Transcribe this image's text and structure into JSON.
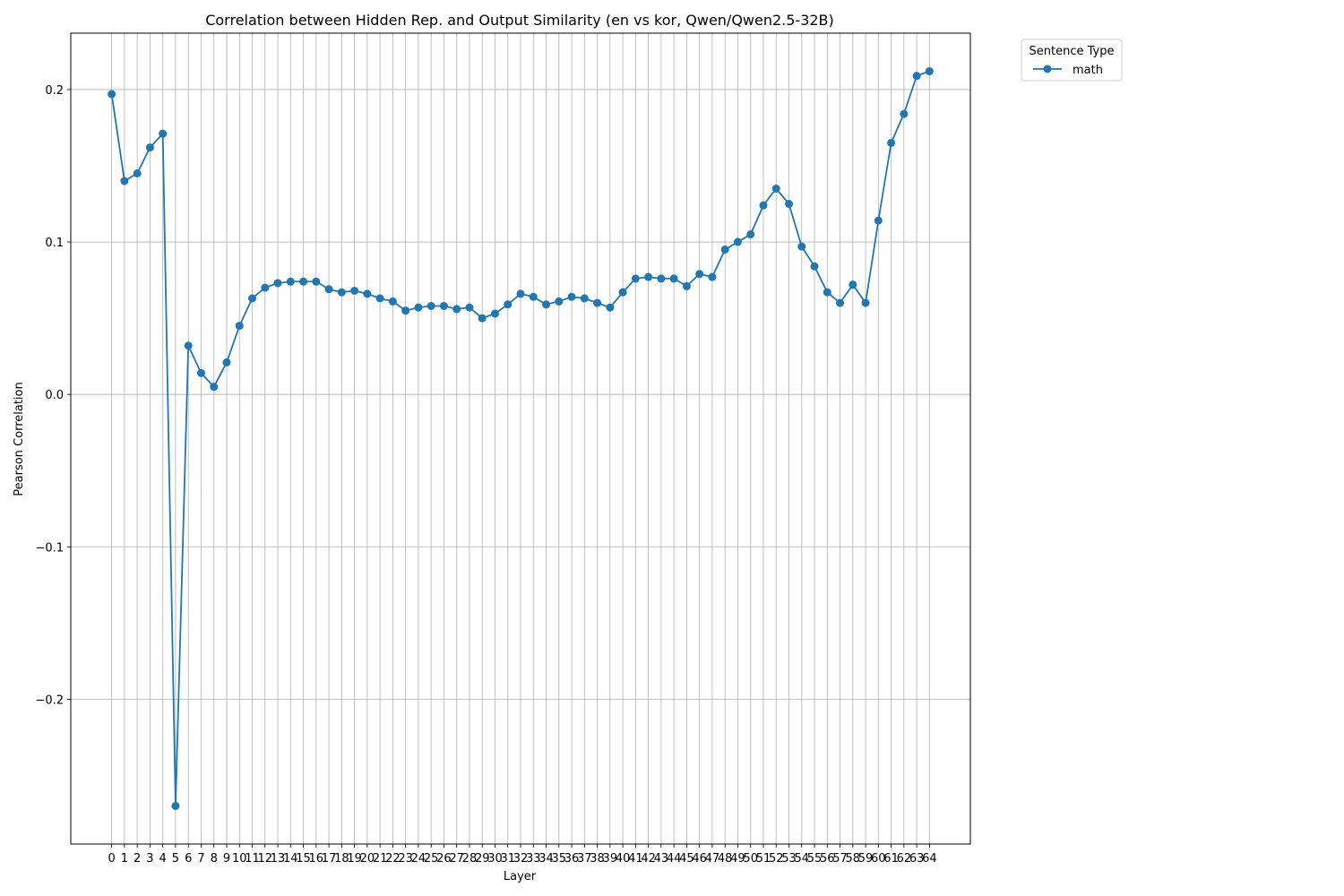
{
  "chart_data": {
    "type": "line",
    "title": "Correlation between Hidden Rep. and Output Similarity (en vs kor, Qwen/Qwen2.5-32B)",
    "xlabel": "Layer",
    "ylabel": "Pearson Correlation",
    "x": [
      0,
      1,
      2,
      3,
      4,
      5,
      6,
      7,
      8,
      9,
      10,
      11,
      12,
      13,
      14,
      15,
      16,
      17,
      18,
      19,
      20,
      21,
      22,
      23,
      24,
      25,
      26,
      27,
      28,
      29,
      30,
      31,
      32,
      33,
      34,
      35,
      36,
      37,
      38,
      39,
      40,
      41,
      42,
      43,
      44,
      45,
      46,
      47,
      48,
      49,
      50,
      51,
      52,
      53,
      54,
      55,
      56,
      57,
      58,
      59,
      60,
      61,
      62,
      63,
      64
    ],
    "series": [
      {
        "name": "math",
        "color": "#1f77b4",
        "values": [
          0.197,
          0.14,
          0.145,
          0.162,
          0.171,
          -0.27,
          0.032,
          0.014,
          0.005,
          0.021,
          0.045,
          0.063,
          0.07,
          0.073,
          0.074,
          0.074,
          0.074,
          0.069,
          0.067,
          0.068,
          0.066,
          0.063,
          0.061,
          0.055,
          0.057,
          0.058,
          0.058,
          0.056,
          0.057,
          0.05,
          0.053,
          0.059,
          0.066,
          0.064,
          0.059,
          0.061,
          0.064,
          0.063,
          0.06,
          0.057,
          0.067,
          0.076,
          0.077,
          0.076,
          0.076,
          0.071,
          0.079,
          0.077,
          0.095,
          0.1,
          0.105,
          0.124,
          0.135,
          0.125,
          0.097,
          0.084,
          0.067,
          0.06,
          0.072,
          0.06,
          0.114,
          0.165,
          0.184,
          0.209,
          0.212
        ]
      }
    ],
    "yticks": [
      -0.2,
      -0.1,
      0.0,
      0.1,
      0.2
    ],
    "ytick_labels": [
      "−0.2",
      "−0.1",
      "0.0",
      "0.1",
      "0.2"
    ],
    "ylim": [
      -0.295,
      0.237
    ],
    "xlim": [
      -3.2,
      67.2
    ],
    "grid": true,
    "legend": {
      "title": "Sentence Type",
      "placement": "upper-right-outside"
    }
  }
}
